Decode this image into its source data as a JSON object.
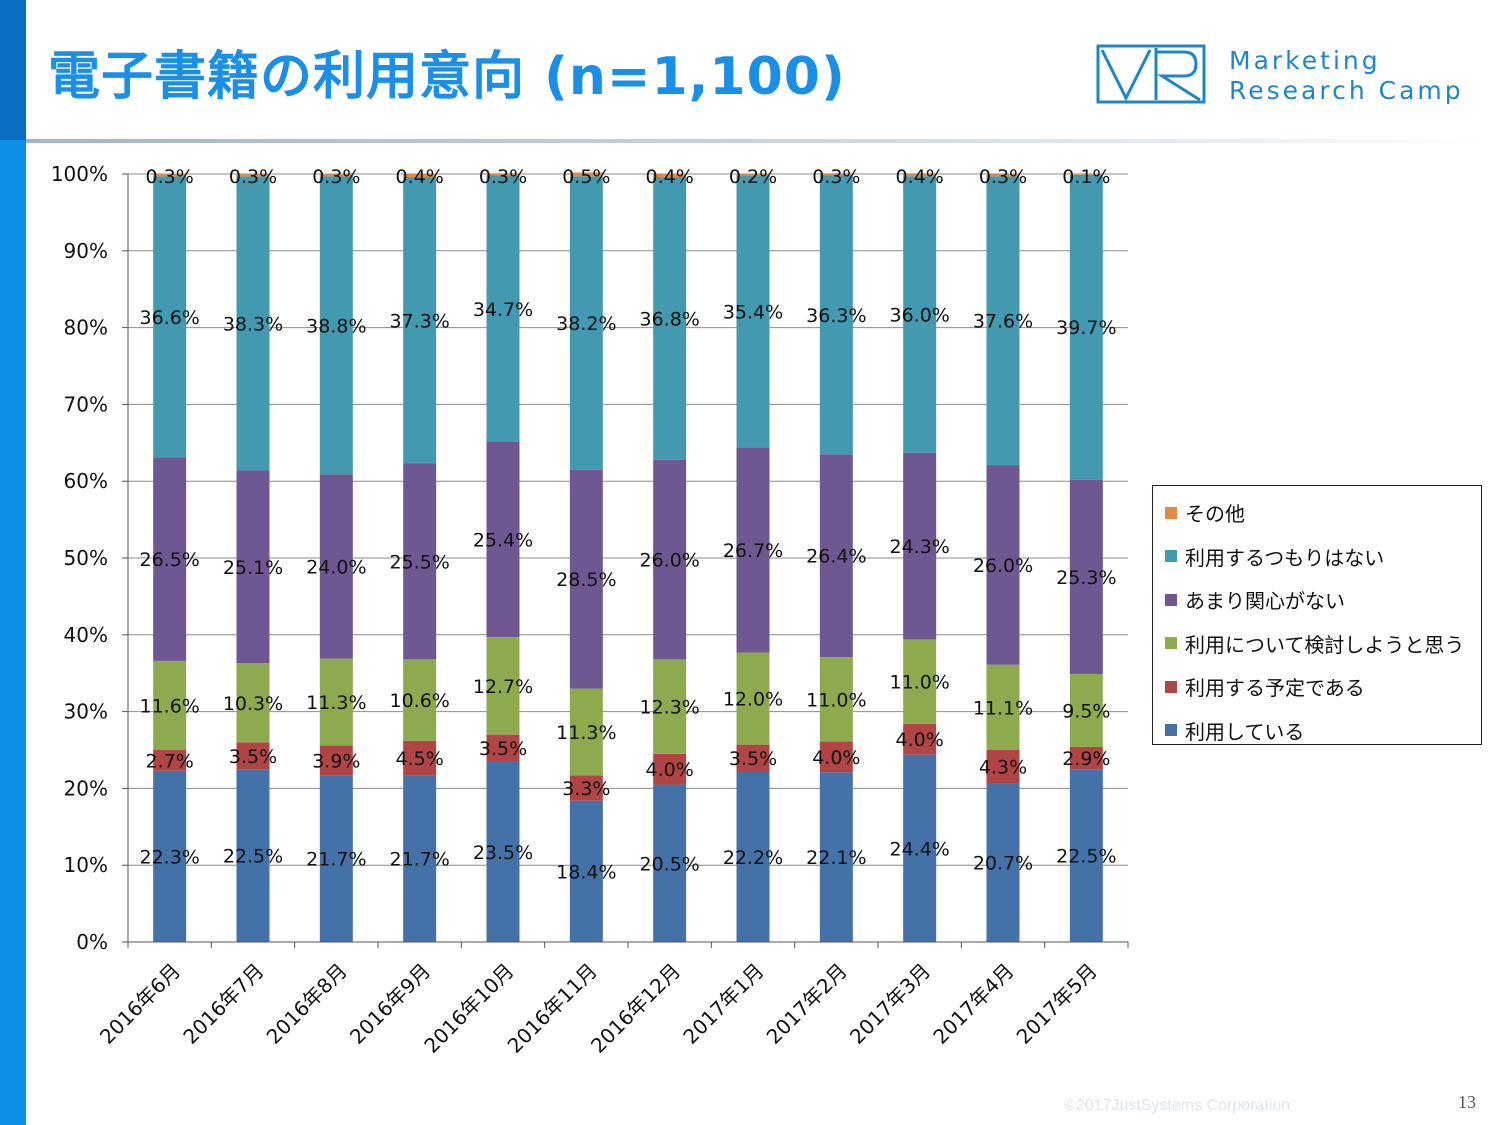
{
  "slide": {
    "title": "電子書籍の利用意向 (n=1,100)",
    "logo_text_line1": "Marketing",
    "logo_text_line2": "Research Camp",
    "copyright": "©2017JustSystems Corporation",
    "page_number": "13",
    "accent_color": "#0d8fe6",
    "title_color": "#1a8fe8"
  },
  "chart_data": {
    "type": "bar",
    "stacked": true,
    "percent_stacked": true,
    "title": "",
    "xlabel": "",
    "ylabel": "",
    "ylim": [
      0,
      100
    ],
    "yticks": [
      "0%",
      "10%",
      "20%",
      "30%",
      "40%",
      "50%",
      "60%",
      "70%",
      "80%",
      "90%",
      "100%"
    ],
    "grid": true,
    "legend_position": "right",
    "categories": [
      "2016年6月",
      "2016年7月",
      "2016年8月",
      "2016年9月",
      "2016年10月",
      "2016年11月",
      "2016年12月",
      "2017年1月",
      "2017年2月",
      "2017年3月",
      "2017年4月",
      "2017年5月"
    ],
    "series": [
      {
        "name": "利用している",
        "color": "#4472a8",
        "values": [
          22.3,
          22.5,
          21.7,
          21.7,
          23.5,
          18.4,
          20.5,
          22.2,
          22.1,
          24.4,
          20.7,
          22.5
        ]
      },
      {
        "name": "利用する予定である",
        "color": "#b14444",
        "values": [
          2.7,
          3.5,
          3.9,
          4.5,
          3.5,
          3.3,
          4.0,
          3.5,
          4.0,
          4.0,
          4.3,
          2.9
        ]
      },
      {
        "name": "利用について検討しようと思う",
        "color": "#8eaa4e",
        "values": [
          11.6,
          10.3,
          11.3,
          10.6,
          12.7,
          11.3,
          12.3,
          12.0,
          11.0,
          11.0,
          11.1,
          9.5
        ]
      },
      {
        "name": "あまり関心がない",
        "color": "#6f5891",
        "values": [
          26.5,
          25.1,
          24.0,
          25.5,
          25.4,
          28.5,
          26.0,
          26.7,
          26.4,
          24.3,
          26.0,
          25.3
        ]
      },
      {
        "name": "利用するつもりはない",
        "color": "#4399b0",
        "values": [
          36.6,
          38.3,
          38.8,
          37.3,
          34.7,
          38.2,
          36.8,
          35.4,
          36.3,
          36.0,
          37.6,
          39.7
        ]
      },
      {
        "name": "その他",
        "color": "#e08a45",
        "values": [
          0.3,
          0.3,
          0.3,
          0.4,
          0.3,
          0.5,
          0.4,
          0.2,
          0.3,
          0.4,
          0.3,
          0.1
        ]
      }
    ]
  }
}
